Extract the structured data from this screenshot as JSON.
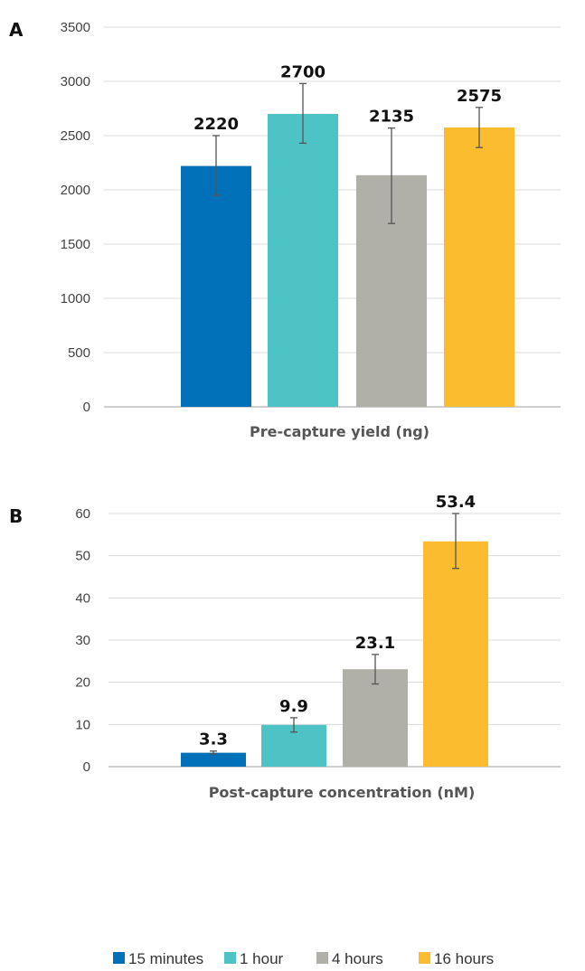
{
  "colors": {
    "15 minutes": "#0070b8",
    "1 hour": "#4dc3c6",
    "4 hours": "#b0b0a8",
    "16 hours": "#fbbd2f"
  },
  "legend": {
    "position": "bottom",
    "items": [
      "15 minutes",
      "1 hour",
      "4 hours",
      "16 hours"
    ]
  },
  "chart_data": [
    {
      "panel": "A",
      "type": "bar",
      "categories": [
        "15 minutes",
        "1 hour",
        "4 hours",
        "16 hours"
      ],
      "values": [
        2220,
        2700,
        2135,
        2575
      ],
      "errors": [
        [
          1950,
          2500
        ],
        [
          2430,
          2980
        ],
        [
          1690,
          2570
        ],
        [
          2390,
          2760
        ]
      ],
      "data_labels": [
        "2220",
        "2700",
        "2135",
        "2575"
      ],
      "xlabel": "Pre-capture yield (ng)",
      "ylim": [
        0,
        3500
      ],
      "yticks": [
        0,
        500,
        1000,
        1500,
        2000,
        2500,
        3000,
        3500
      ],
      "grid": true
    },
    {
      "panel": "B",
      "type": "bar",
      "categories": [
        "15 minutes",
        "1 hour",
        "4 hours",
        "16 hours"
      ],
      "values": [
        3.3,
        9.9,
        23.1,
        53.4
      ],
      "errors": [
        [
          3.0,
          3.7
        ],
        [
          8.2,
          11.6
        ],
        [
          19.6,
          26.6
        ],
        [
          47.0,
          60.0
        ]
      ],
      "data_labels": [
        "3.3",
        "9.9",
        "23.1",
        "53.4"
      ],
      "xlabel": "Post-capture concentration (nM)",
      "ylim": [
        0,
        60
      ],
      "yticks": [
        0,
        10,
        20,
        30,
        40,
        50,
        60
      ],
      "grid": true
    }
  ]
}
